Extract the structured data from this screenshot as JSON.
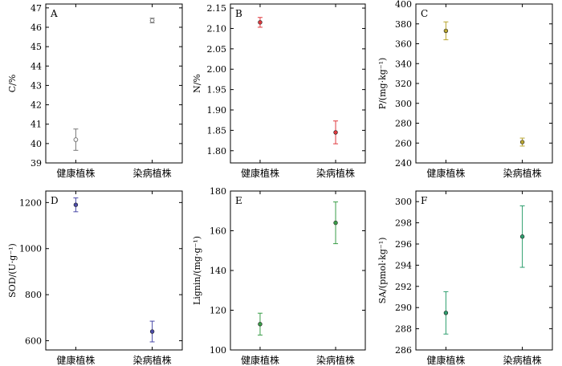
{
  "chart_data": [
    {
      "type": "scatter",
      "panel_label": "A",
      "title": "",
      "ylabel": "C/%",
      "categories": [
        "健康植株",
        "染病植株"
      ],
      "values": [
        40.2,
        46.35
      ],
      "errors": [
        0.55,
        0.12
      ],
      "ylim": [
        39,
        47.2
      ],
      "yticks": [
        39,
        40,
        41,
        42,
        43,
        44,
        45,
        46,
        47
      ],
      "color": "#777777",
      "marker": "open-circle",
      "grid": false
    },
    {
      "type": "scatter",
      "panel_label": "B",
      "title": "",
      "ylabel": "N/%",
      "categories": [
        "健康植株",
        "染病植株"
      ],
      "values": [
        2.115,
        1.845
      ],
      "errors": [
        0.012,
        0.028
      ],
      "ylim": [
        1.77,
        2.16
      ],
      "yticks": [
        1.8,
        1.85,
        1.9,
        1.95,
        2.0,
        2.05,
        2.1,
        2.15
      ],
      "color": "#e0393e",
      "marker": "filled-circle",
      "grid": false
    },
    {
      "type": "scatter",
      "panel_label": "C",
      "title": "",
      "ylabel": "P/(mg·kg⁻¹)",
      "categories": [
        "健康植株",
        "染病植株"
      ],
      "values": [
        373,
        261
      ],
      "errors": [
        9,
        4
      ],
      "ylim": [
        240,
        400
      ],
      "yticks": [
        240,
        260,
        280,
        300,
        320,
        340,
        360,
        380,
        400
      ],
      "color": "#b8a530",
      "marker": "filled-circle",
      "grid": false
    },
    {
      "type": "scatter",
      "panel_label": "D",
      "title": "",
      "ylabel": "SOD/(U·g⁻¹)",
      "categories": [
        "健康植株",
        "染病植株"
      ],
      "values": [
        1190,
        640
      ],
      "errors": [
        30,
        45
      ],
      "ylim": [
        560,
        1250
      ],
      "yticks": [
        600,
        800,
        1000,
        1200
      ],
      "color": "#4a4aa8",
      "marker": "filled-circle",
      "grid": false
    },
    {
      "type": "scatter",
      "panel_label": "E",
      "title": "",
      "ylabel": "Lignin/(mg·g⁻¹)",
      "categories": [
        "健康植株",
        "染病植株"
      ],
      "values": [
        113,
        164
      ],
      "errors": [
        5.5,
        10.5
      ],
      "ylim": [
        100,
        180
      ],
      "yticks": [
        100,
        120,
        140,
        160,
        180
      ],
      "color": "#3a9e48",
      "marker": "filled-circle",
      "grid": false
    },
    {
      "type": "scatter",
      "panel_label": "F",
      "title": "",
      "ylabel": "SA/(pmol·kg⁻¹)",
      "categories": [
        "健康植株",
        "染病植株"
      ],
      "values": [
        289.5,
        296.7
      ],
      "errors": [
        2.0,
        2.9
      ],
      "ylim": [
        286,
        301
      ],
      "yticks": [
        286,
        288,
        290,
        292,
        294,
        296,
        298,
        300
      ],
      "color": "#2e9e6e",
      "marker": "filled-circle",
      "grid": false
    }
  ]
}
